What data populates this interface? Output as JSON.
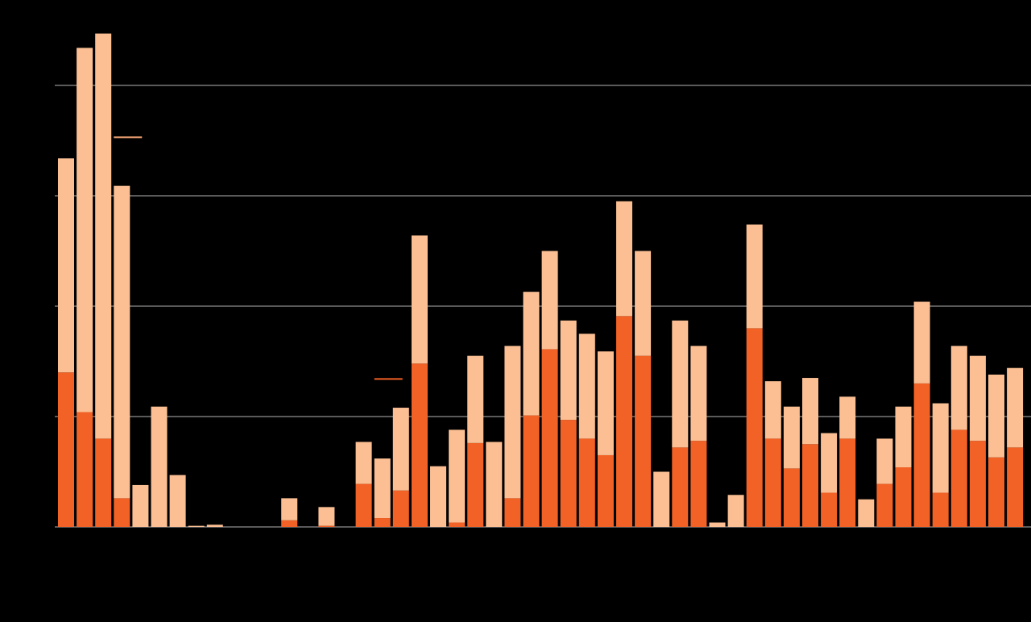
{
  "chart_data": {
    "type": "stacked_bar",
    "categories": [
      null,
      null,
      null,
      null,
      null,
      null,
      null,
      null,
      null,
      null,
      null,
      null,
      null,
      null,
      null,
      null,
      null,
      null,
      null,
      null,
      null,
      null,
      null,
      null,
      null,
      null,
      null,
      null,
      null,
      null,
      null,
      null,
      null,
      null,
      null,
      null,
      null,
      null,
      null,
      null,
      null,
      null,
      null,
      null,
      null,
      null,
      null,
      null,
      null,
      null,
      null,
      null
    ],
    "series": [
      {
        "color": "#f26125",
        "values": [
          1.4,
          1.04,
          0.8,
          0.26,
          0,
          0,
          0,
          0,
          0,
          0,
          0,
          0,
          0.06,
          0,
          0.01,
          0,
          0.39,
          0.08,
          0.33,
          1.48,
          0,
          0.04,
          0.76,
          0,
          0.26,
          1.01,
          1.61,
          0.97,
          0.8,
          0.65,
          1.91,
          1.55,
          0,
          0.72,
          0.78,
          0,
          0,
          1.8,
          0.8,
          0.53,
          0.75,
          0.31,
          0.8,
          0,
          0.39,
          0.54,
          1.3,
          0.31,
          0.88,
          0.78,
          0.63,
          0.72
        ]
      },
      {
        "color": "#fbbf93",
        "values": [
          1.94,
          3.3,
          3.67,
          2.83,
          0.38,
          1.09,
          0.47,
          0.01,
          0.02,
          0,
          0,
          0,
          0.2,
          0,
          0.17,
          0,
          0.38,
          0.54,
          0.75,
          1.16,
          0.55,
          0.84,
          0.79,
          0.77,
          1.38,
          1.12,
          0.89,
          0.9,
          0.95,
          0.94,
          1.04,
          0.95,
          0.5,
          1.15,
          0.86,
          0.04,
          0.29,
          0.94,
          0.52,
          0.56,
          0.6,
          0.54,
          0.38,
          0.25,
          0.41,
          0.55,
          0.74,
          0.81,
          0.76,
          0.77,
          0.75,
          0.72
        ]
      }
    ],
    "reference_lines": [
      {
        "category": 3,
        "value": 3.53,
        "color": "#f4a675"
      },
      {
        "category": 17,
        "value": 1.34,
        "color": "#f26125"
      }
    ],
    "ylim": [
      0,
      4.5
    ],
    "yticks": [
      0,
      1,
      2,
      3,
      4
    ],
    "grid": true,
    "grid_color": "#5a5a5a"
  }
}
